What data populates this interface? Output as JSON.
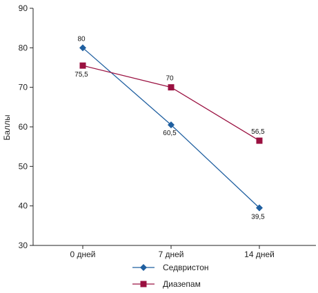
{
  "chart_data": {
    "type": "line",
    "title": "",
    "xlabel": "",
    "ylabel": "Баллы",
    "categories": [
      "0 дней",
      "7 дней",
      "14 дней"
    ],
    "ylim": [
      30,
      90
    ],
    "yticks": [
      30,
      40,
      50,
      60,
      70,
      80,
      90
    ],
    "grid": false,
    "legend_position": "bottom-center",
    "series": [
      {
        "name": "Седвристон",
        "values": [
          80,
          60.5,
          39.5
        ],
        "value_labels": [
          "80",
          "60,5",
          "39,5"
        ],
        "color": "#1f5fa0",
        "marker": "diamond"
      },
      {
        "name": "Диазепам",
        "values": [
          75.5,
          70,
          56.5
        ],
        "value_labels": [
          "75,5",
          "70",
          "56,5"
        ],
        "color": "#9a1040",
        "marker": "square"
      }
    ]
  }
}
